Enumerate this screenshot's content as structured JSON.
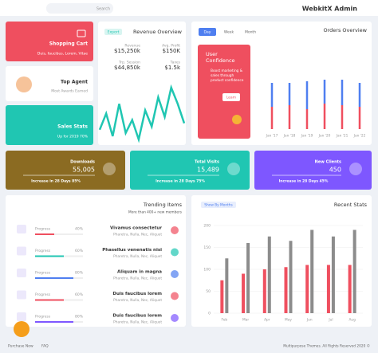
{
  "header": {
    "search": "Search",
    "brand": "WebkitX Admin"
  },
  "cards": [
    {
      "title": "Shopping Cart",
      "subtitle": "Duis, faucibus, Lorem, Vitae"
    },
    {
      "title": "Top Agent",
      "subtitle": "Most Awards Earned"
    },
    {
      "title": "Sales Stats",
      "subtitle": "Up for 2019 70%"
    }
  ],
  "revenue": {
    "button": "Export",
    "title": "Revenue Overview",
    "stats": [
      {
        "label": "Revenue",
        "value": "$15,250k"
      },
      {
        "label": "Avg. Profit",
        "value": "$150K"
      },
      {
        "label": "Trp. Session",
        "value": "$44,850k"
      },
      {
        "label": "Taxes",
        "value": "$1.5k"
      }
    ],
    "trend": [
      30,
      55,
      20,
      70,
      25,
      45,
      15,
      60,
      35,
      80,
      50,
      95,
      70,
      40
    ]
  },
  "orders": {
    "tabs": [
      "Day",
      "Week",
      "Month"
    ],
    "title": "Orders Overview",
    "promo": {
      "title": "User Confidence",
      "text": "Boost marketing & sales through product confidence",
      "button": "Learn"
    },
    "chart_data": {
      "type": "bar",
      "stacked": true,
      "categories": [
        "Jan '17",
        "Jan '18",
        "Jan '19",
        "Jan '20",
        "Jan '21",
        "Jan '22"
      ],
      "ylim": [
        0,
        100
      ],
      "series": [
        {
          "color": "#ef4f5f",
          "values": [
            28,
            30,
            25,
            32,
            30,
            28
          ]
        },
        {
          "color": "#4f7ff0",
          "values": [
            30,
            28,
            35,
            30,
            32,
            30
          ]
        }
      ]
    }
  },
  "kpis": [
    {
      "title": "Downloads",
      "value": "55,005",
      "note": "Increase in 28 Days 85%"
    },
    {
      "title": "Total Visits",
      "value": "15,489",
      "note": "Increase in 28 Days 75%"
    },
    {
      "title": "New Clients",
      "value": "450",
      "note": "Increase in 28 Days 45%"
    }
  ],
  "trending": {
    "title": "Trending Items",
    "subtitle": "More than 400+ new members",
    "rows": [
      {
        "label": "Progress",
        "progress": {
          "value": 40,
          "label": "40%"
        },
        "name": "Vivamus consectetur",
        "tags": "Pharetra, Nulla, Nec, Aliquet"
      },
      {
        "label": "Progress",
        "progress": {
          "value": 60,
          "label": "60%"
        },
        "name": "Phasellus venenatis nisi",
        "tags": "Pharetra, Nulla, Nec, Aliquet"
      },
      {
        "label": "Progress",
        "progress": {
          "value": 80,
          "label": "80%"
        },
        "name": "Aliquam in magna",
        "tags": "Pharetra, Nulla, Nec, Aliquet"
      },
      {
        "label": "Progress",
        "progress": {
          "value": 60,
          "label": "60%"
        },
        "name": "Duis faucibus lorem",
        "tags": "Pharetra, Nulla, Nec, Aliquet"
      },
      {
        "label": "Progress",
        "progress": {
          "value": 80,
          "label": "80%"
        },
        "name": "Duis faucibus lorem",
        "tags": "Pharetra, Nulla, Nec, Aliquet"
      }
    ]
  },
  "recent": {
    "button": "Show By Months",
    "title": "Recent Stats",
    "chart_data": {
      "type": "bar",
      "categories": [
        "Feb",
        "Mar",
        "Apr",
        "May",
        "Jun",
        "Jul",
        "Aug"
      ],
      "ylim": [
        0,
        200
      ],
      "yticks": [
        0,
        50,
        100,
        150,
        200
      ],
      "series": [
        {
          "color": "#ef4f5f",
          "values": [
            75,
            90,
            100,
            105,
            110,
            110,
            110
          ]
        },
        {
          "color": "#8c8c8c",
          "values": [
            125,
            160,
            175,
            165,
            190,
            175,
            190
          ]
        }
      ]
    }
  },
  "footer": {
    "links": [
      "Purchase Now",
      "FAQ"
    ],
    "copyright": "Multipurpose Themes. All Rights Reserved 2020 ©"
  }
}
